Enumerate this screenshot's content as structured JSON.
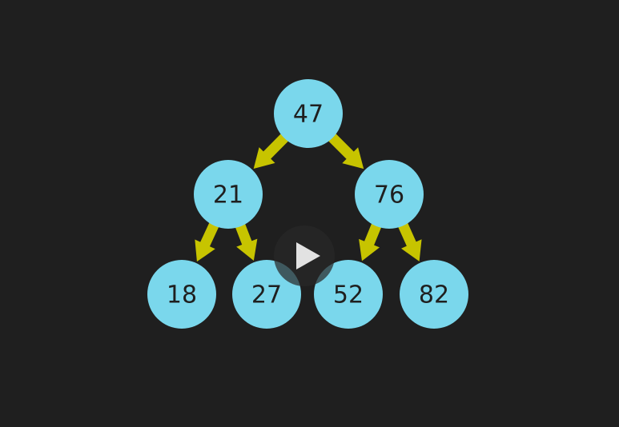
{
  "colors": {
    "background": "#1f1f1f",
    "node_fill": "#7ad7ec",
    "node_text": "#1f1f1f",
    "edge": "#c7c400",
    "play_icon": "#e2e2e2"
  },
  "tree": {
    "nodes": [
      {
        "id": "n47",
        "label": "47"
      },
      {
        "id": "n21",
        "label": "21"
      },
      {
        "id": "n76",
        "label": "76"
      },
      {
        "id": "n18",
        "label": "18"
      },
      {
        "id": "n27",
        "label": "27"
      },
      {
        "id": "n52",
        "label": "52"
      },
      {
        "id": "n82",
        "label": "82"
      }
    ],
    "edges": [
      {
        "from": "n47",
        "to": "n21"
      },
      {
        "from": "n47",
        "to": "n76"
      },
      {
        "from": "n21",
        "to": "n18"
      },
      {
        "from": "n21",
        "to": "n27"
      },
      {
        "from": "n76",
        "to": "n52"
      },
      {
        "from": "n76",
        "to": "n82"
      }
    ]
  },
  "video_overlay": {
    "icon": "play-icon"
  }
}
